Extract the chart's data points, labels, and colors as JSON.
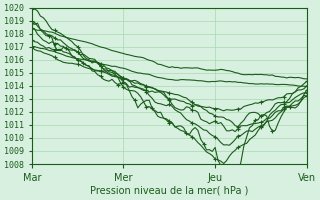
{
  "title": "",
  "xlabel": "Pression niveau de la mer( hPa )",
  "ylim": [
    1008,
    1020
  ],
  "yticks": [
    1008,
    1009,
    1010,
    1011,
    1012,
    1013,
    1014,
    1015,
    1016,
    1017,
    1018,
    1019,
    1020
  ],
  "days": [
    "Mar",
    "Mer",
    "Jeu",
    "Ven"
  ],
  "bg_color": "#d8f0e0",
  "grid_color": "#a8d8b0",
  "line_color": "#1a5c1a",
  "num_days": 4,
  "total_points": 97
}
